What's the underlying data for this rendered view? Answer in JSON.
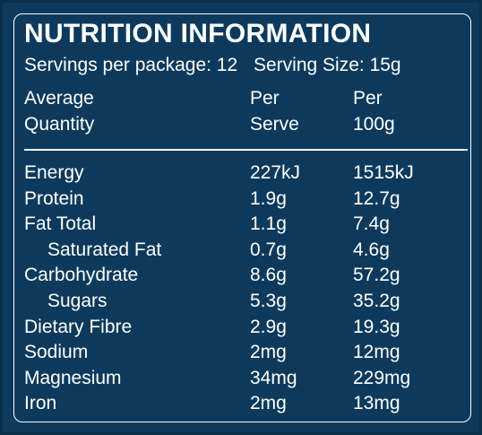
{
  "title": "NUTRITION INFORMATION",
  "servings_per_package": "Servings per package: 12",
  "serving_size": "Serving Size: 15g",
  "header": {
    "col1": [
      "Average",
      "Quantity"
    ],
    "col2": [
      "Per",
      "Serve"
    ],
    "col3": [
      "Per",
      "100g"
    ]
  },
  "rows": [
    {
      "name": "Energy",
      "per_serve": "227kJ",
      "per_100g": "1515kJ",
      "indent": false
    },
    {
      "name": "Protein",
      "per_serve": "1.9g",
      "per_100g": "12.7g",
      "indent": false
    },
    {
      "name": "Fat Total",
      "per_serve": "1.1g",
      "per_100g": "7.4g",
      "indent": false
    },
    {
      "name": "Saturated Fat",
      "per_serve": "0.7g",
      "per_100g": "4.6g",
      "indent": true
    },
    {
      "name": "Carbohydrate",
      "per_serve": "8.6g",
      "per_100g": "57.2g",
      "indent": false
    },
    {
      "name": "Sugars",
      "per_serve": "5.3g",
      "per_100g": "35.2g",
      "indent": true
    },
    {
      "name": "Dietary Fibre",
      "per_serve": "2.9g",
      "per_100g": "19.3g",
      "indent": false
    },
    {
      "name": "Sodium",
      "per_serve": "2mg",
      "per_100g": "12mg",
      "indent": false
    },
    {
      "name": "Magnesium",
      "per_serve": "34mg",
      "per_100g": "229mg",
      "indent": false
    },
    {
      "name": "Iron",
      "per_serve": "2mg",
      "per_100g": "13mg",
      "indent": false
    }
  ],
  "colors": {
    "background": "#0d3a5c",
    "text": "#ffffff"
  }
}
